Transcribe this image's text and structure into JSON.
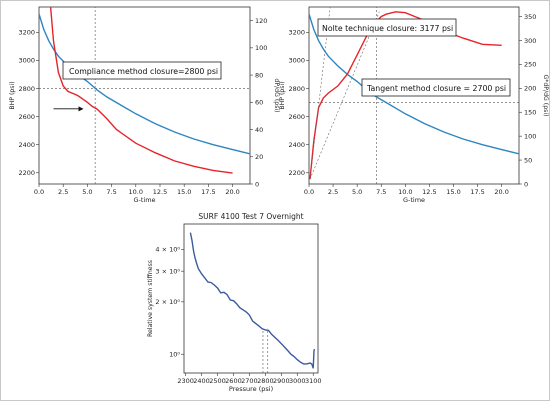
{
  "chart_data": [
    {
      "type": "line",
      "xlabel": "G-time",
      "ylabel": "BHP (psi)",
      "ylabel_right": "dP/dG (psi)",
      "xlim": [
        0,
        21.8
      ],
      "ylim": [
        2120,
        3380
      ],
      "ylim_right": [
        0,
        130
      ],
      "x_ticks": [
        "0.0",
        "2.5",
        "5.0",
        "7.5",
        "10.0",
        "12.5",
        "15.0",
        "17.5",
        "20.0"
      ],
      "x_tick_values": [
        0,
        2.5,
        5,
        7.5,
        10,
        12.5,
        15,
        17.5,
        20
      ],
      "y_ticks": [
        "2200",
        "2400",
        "2600",
        "2800",
        "3000",
        "3200"
      ],
      "y_tick_values": [
        2200,
        2400,
        2600,
        2800,
        3000,
        3200
      ],
      "y_right_ticks": [
        "0",
        "20",
        "40",
        "60",
        "80",
        "100",
        "120"
      ],
      "y_right_tick_values": [
        0,
        20,
        40,
        60,
        80,
        100,
        120
      ],
      "series": [
        {
          "axis": "left",
          "color": "#2e86c1",
          "x": [
            0,
            0.5,
            1,
            1.5,
            2,
            3,
            4,
            5,
            6,
            7,
            8,
            10,
            12,
            14,
            16,
            18,
            20,
            21.8
          ],
          "y": [
            3330,
            3220,
            3140,
            3080,
            3030,
            2960,
            2900,
            2850,
            2790,
            2740,
            2700,
            2620,
            2550,
            2490,
            2440,
            2400,
            2365,
            2335
          ]
        },
        {
          "axis": "right",
          "color": "#e8242b",
          "x": [
            1.2,
            1.5,
            2,
            2.5,
            3,
            4,
            5,
            5.5,
            6,
            7,
            8,
            10,
            12,
            14,
            16,
            18,
            20
          ],
          "y": [
            130,
            105,
            82,
            72,
            68,
            65,
            60,
            57,
            55,
            48,
            40,
            30,
            23,
            17,
            13,
            10,
            8
          ]
        }
      ],
      "annotations": [
        {
          "text": "Compliance method closure=2800 psi"
        }
      ],
      "reference_lines": {
        "vertical_x": 5.8,
        "horizontal_y": 2800
      }
    },
    {
      "type": "line",
      "xlabel": "G-time",
      "ylabel": "BHP (psi)",
      "ylabel_right": "G*dP/dG (psi)",
      "xlim": [
        0,
        21.8
      ],
      "ylim": [
        2120,
        3380
      ],
      "ylim_right": [
        0,
        370
      ],
      "x_ticks": [
        "0.0",
        "2.5",
        "5.0",
        "7.5",
        "10.0",
        "12.5",
        "15.0",
        "17.5",
        "20.0"
      ],
      "x_tick_values": [
        0,
        2.5,
        5,
        7.5,
        10,
        12.5,
        15,
        17.5,
        20
      ],
      "y_ticks": [
        "2200",
        "2400",
        "2600",
        "2800",
        "3000",
        "3200"
      ],
      "y_tick_values": [
        2200,
        2400,
        2600,
        2800,
        3000,
        3200
      ],
      "y_right_ticks": [
        "0",
        "50",
        "100",
        "150",
        "200",
        "250",
        "300",
        "350"
      ],
      "y_right_tick_values": [
        0,
        50,
        100,
        150,
        200,
        250,
        300,
        350
      ],
      "series": [
        {
          "axis": "left",
          "color": "#2e86c1",
          "x": [
            0,
            0.5,
            1,
            1.5,
            2,
            3,
            4,
            5,
            6,
            7,
            8,
            10,
            12,
            14,
            16,
            18,
            20,
            21.8
          ],
          "y": [
            3330,
            3220,
            3140,
            3080,
            3030,
            2960,
            2900,
            2850,
            2790,
            2740,
            2700,
            2620,
            2550,
            2490,
            2440,
            2400,
            2365,
            2335
          ]
        },
        {
          "axis": "right",
          "color": "#e8242b",
          "x": [
            0.1,
            0.5,
            1,
            1.5,
            2,
            3,
            4,
            5,
            6,
            7,
            7.5,
            8,
            9,
            10,
            11,
            12,
            14,
            16,
            18,
            20
          ],
          "y": [
            10,
            90,
            160,
            180,
            190,
            205,
            230,
            270,
            310,
            340,
            350,
            355,
            360,
            358,
            350,
            342,
            320,
            305,
            292,
            290
          ]
        }
      ],
      "annotations": [
        {
          "text": "Nolte technique closure: 3177 psi"
        },
        {
          "text": "Tangent method closure = 2700 psi"
        }
      ],
      "reference_lines": {
        "vertical_x": 7,
        "horizontal_y": 2700
      }
    },
    {
      "type": "line",
      "title": "SURF 4100 Test 7 Overnight",
      "xlabel": "Pressure (psi)",
      "ylabel": "Relative system stiffness",
      "y_scale": "log",
      "xlim": [
        2290,
        3130
      ],
      "ylim": [
        0.78,
        5.6
      ],
      "x_ticks": [
        "2300",
        "2400",
        "2500",
        "2600",
        "2700",
        "2800",
        "2900",
        "3000",
        "3100"
      ],
      "x_tick_values": [
        2300,
        2400,
        2500,
        2600,
        2700,
        2800,
        2900,
        3000,
        3100
      ],
      "y_ticks": [
        "4 × 10⁰",
        "3 × 10⁰",
        "2 × 10⁰",
        "10⁰"
      ],
      "y_tick_values": [
        4,
        3,
        2,
        1
      ],
      "series": [
        {
          "color": "#3a5c9e",
          "x": [
            2330,
            2340,
            2350,
            2360,
            2370,
            2380,
            2400,
            2420,
            2440,
            2460,
            2480,
            2500,
            2520,
            2540,
            2560,
            2580,
            2600,
            2620,
            2640,
            2660,
            2680,
            2700,
            2720,
            2740,
            2760,
            2780,
            2800,
            2820,
            2840,
            2860,
            2880,
            2900,
            2920,
            2940,
            2960,
            2980,
            3000,
            3020,
            3040,
            3060,
            3080,
            3090,
            3095,
            3100,
            3105,
            3108
          ],
          "y": [
            5.0,
            4.5,
            3.9,
            3.55,
            3.3,
            3.1,
            2.9,
            2.75,
            2.6,
            2.58,
            2.5,
            2.4,
            2.25,
            2.27,
            2.2,
            2.05,
            2.03,
            1.95,
            1.85,
            1.8,
            1.75,
            1.68,
            1.55,
            1.5,
            1.45,
            1.4,
            1.38,
            1.37,
            1.3,
            1.25,
            1.2,
            1.15,
            1.1,
            1.05,
            1.0,
            0.97,
            0.93,
            0.9,
            0.88,
            0.88,
            0.89,
            0.88,
            0.86,
            0.83,
            1.05,
            1.07
          ]
        }
      ],
      "reference_lines": {
        "vertical_x": [
          2785,
          2815
        ]
      }
    }
  ]
}
